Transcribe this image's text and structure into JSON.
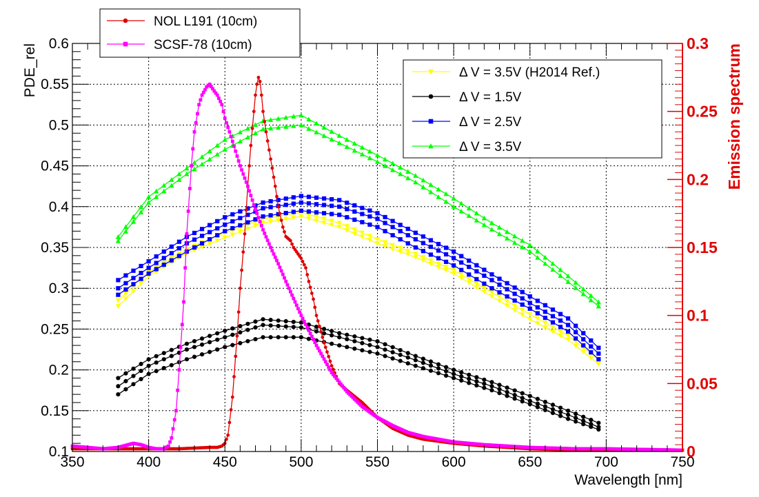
{
  "chart_data": {
    "type": "line",
    "xlabel": "Wavelength [nm]",
    "ylabel": "PDE_rel",
    "y2label": "Emission spectrum",
    "xlim": [
      350,
      750
    ],
    "ylim": [
      0.1,
      0.6
    ],
    "y2lim": [
      0,
      0.3
    ],
    "grid": true,
    "x_ticks": [
      "350",
      "400",
      "450",
      "500",
      "550",
      "600",
      "650",
      "700",
      "750"
    ],
    "y_ticks": [
      "0.1",
      "0.15",
      "0.2",
      "0.25",
      "0.3",
      "0.35",
      "0.4",
      "0.45",
      "0.5",
      "0.55",
      "0.6"
    ],
    "y2_ticks": [
      "0",
      "0.05",
      "0.1",
      "0.15",
      "0.2",
      "0.25",
      "0.3"
    ],
    "legend_top": {
      "placement": "top-left-outside",
      "entries": [
        {
          "label": "NOL L191 (10cm)",
          "color": "#e00000",
          "marker": "circle"
        },
        {
          "label": "SCSF-78 (10cm)",
          "color": "#ff00ff",
          "marker": "square"
        }
      ]
    },
    "legend_right": {
      "placement": "top-right",
      "entries": [
        {
          "label": "Δ V = 3.5V (H2014 Ref.)",
          "color": "#ffff00",
          "marker": "triangle-down"
        },
        {
          "label": "Δ V = 1.5V",
          "color": "#000000",
          "marker": "circle"
        },
        {
          "label": "Δ V = 2.5V",
          "color": "#0000ff",
          "marker": "square"
        },
        {
          "label": "Δ V = 3.5V",
          "color": "#00ff00",
          "marker": "triangle-up"
        }
      ]
    },
    "pde_series": [
      {
        "color": "#ffff00",
        "marker": "triangle-down",
        "x": [
          380,
          400,
          425,
          450,
          475,
          500,
          525,
          550,
          575,
          600,
          625,
          650,
          675,
          695
        ],
        "y": [
          0.278,
          0.315,
          0.343,
          0.362,
          0.38,
          0.388,
          0.375,
          0.355,
          0.338,
          0.318,
          0.29,
          0.262,
          0.237,
          0.207
        ]
      },
      {
        "color": "#ffff00",
        "marker": "triangle-down",
        "x": [
          380,
          400,
          425,
          450,
          475,
          500,
          525,
          550,
          575,
          600,
          625,
          650,
          675,
          695
        ],
        "y": [
          0.285,
          0.32,
          0.348,
          0.368,
          0.385,
          0.393,
          0.38,
          0.36,
          0.342,
          0.322,
          0.295,
          0.268,
          0.242,
          0.213
        ]
      },
      {
        "color": "#000000",
        "marker": "circle",
        "x": [
          380,
          400,
          425,
          450,
          475,
          500,
          525,
          550,
          575,
          600,
          625,
          650,
          675,
          695
        ],
        "y": [
          0.19,
          0.213,
          0.232,
          0.248,
          0.262,
          0.258,
          0.245,
          0.235,
          0.217,
          0.2,
          0.185,
          0.168,
          0.15,
          0.135
        ]
      },
      {
        "color": "#000000",
        "marker": "circle",
        "x": [
          380,
          400,
          425,
          450,
          475,
          500,
          525,
          550,
          575,
          600,
          625,
          650,
          675,
          695
        ],
        "y": [
          0.18,
          0.205,
          0.225,
          0.24,
          0.255,
          0.252,
          0.24,
          0.228,
          0.212,
          0.195,
          0.18,
          0.162,
          0.145,
          0.13
        ]
      },
      {
        "color": "#000000",
        "marker": "circle",
        "x": [
          380,
          400,
          425,
          450,
          475,
          500,
          525,
          550,
          575,
          600,
          625,
          650,
          675,
          695
        ],
        "y": [
          0.17,
          0.195,
          0.213,
          0.228,
          0.24,
          0.24,
          0.23,
          0.22,
          0.205,
          0.19,
          0.175,
          0.158,
          0.14,
          0.127
        ]
      },
      {
        "color": "#0000ff",
        "marker": "square",
        "x": [
          380,
          400,
          425,
          450,
          475,
          500,
          525,
          550,
          575,
          600,
          625,
          650,
          675,
          695
        ],
        "y": [
          0.31,
          0.333,
          0.363,
          0.387,
          0.405,
          0.413,
          0.408,
          0.392,
          0.368,
          0.345,
          0.317,
          0.29,
          0.263,
          0.227
        ]
      },
      {
        "color": "#0000ff",
        "marker": "square",
        "x": [
          380,
          400,
          425,
          450,
          475,
          500,
          525,
          550,
          575,
          600,
          625,
          650,
          675,
          695
        ],
        "y": [
          0.3,
          0.325,
          0.355,
          0.378,
          0.398,
          0.405,
          0.4,
          0.385,
          0.36,
          0.337,
          0.31,
          0.282,
          0.255,
          0.22
        ]
      },
      {
        "color": "#0000ff",
        "marker": "square",
        "x": [
          380,
          400,
          425,
          450,
          475,
          500,
          525,
          550,
          575,
          600,
          625,
          650,
          675,
          695
        ],
        "y": [
          0.292,
          0.318,
          0.345,
          0.37,
          0.388,
          0.395,
          0.39,
          0.375,
          0.35,
          0.328,
          0.3,
          0.275,
          0.247,
          0.213
        ]
      },
      {
        "color": "#00ff00",
        "marker": "triangle-up",
        "x": [
          380,
          400,
          425,
          450,
          475,
          500,
          525,
          550,
          575,
          600,
          625,
          650,
          675,
          695
        ],
        "y": [
          0.363,
          0.412,
          0.447,
          0.482,
          0.505,
          0.512,
          0.487,
          0.463,
          0.438,
          0.41,
          0.38,
          0.353,
          0.315,
          0.283
        ]
      },
      {
        "color": "#00ff00",
        "marker": "triangle-up",
        "x": [
          380,
          400,
          425,
          450,
          475,
          500,
          525,
          550,
          575,
          600,
          625,
          650,
          675,
          695
        ],
        "y": [
          0.358,
          0.405,
          0.44,
          0.47,
          0.495,
          0.5,
          0.478,
          0.455,
          0.43,
          0.4,
          0.372,
          0.345,
          0.308,
          0.278
        ]
      }
    ],
    "emission_series": [
      {
        "name": "NOL L191 (10cm)",
        "color": "#e00000",
        "marker": "circle",
        "x": [
          350,
          360,
          380,
          400,
          420,
          440,
          445,
          448,
          450,
          452,
          455,
          458,
          460,
          463,
          465,
          467,
          469,
          470,
          471,
          472,
          473,
          474,
          475,
          477,
          480,
          483,
          485,
          488,
          490,
          493,
          495,
          500,
          503,
          505,
          508,
          510,
          515,
          520,
          525,
          530,
          540,
          550,
          560,
          570,
          580,
          600,
          620,
          650,
          680,
          700,
          750
        ],
        "y": [
          0.002,
          0.002,
          0.002,
          0.002,
          0.002,
          0.003,
          0.003,
          0.004,
          0.006,
          0.012,
          0.04,
          0.085,
          0.12,
          0.16,
          0.195,
          0.225,
          0.25,
          0.262,
          0.27,
          0.275,
          0.272,
          0.262,
          0.25,
          0.235,
          0.215,
          0.195,
          0.18,
          0.165,
          0.158,
          0.155,
          0.15,
          0.142,
          0.135,
          0.125,
          0.112,
          0.1,
          0.08,
          0.063,
          0.05,
          0.045,
          0.036,
          0.025,
          0.017,
          0.012,
          0.009,
          0.006,
          0.004,
          0.002,
          0.001,
          0.001,
          0.001
        ]
      },
      {
        "name": "SCSF-78 (10cm)",
        "color": "#ff00ff",
        "marker": "square",
        "x": [
          350,
          360,
          370,
          380,
          390,
          395,
          400,
          405,
          410,
          413,
          415,
          418,
          420,
          423,
          425,
          428,
          430,
          433,
          435,
          438,
          440,
          443,
          445,
          448,
          450,
          453,
          455,
          460,
          465,
          470,
          475,
          480,
          485,
          490,
          500,
          510,
          520,
          530,
          540,
          550,
          560,
          570,
          580,
          590,
          600,
          620,
          650,
          680,
          700,
          750
        ],
        "y": [
          0.004,
          0.003,
          0.002,
          0.003,
          0.006,
          0.005,
          0.003,
          0.002,
          0.002,
          0.004,
          0.01,
          0.03,
          0.06,
          0.11,
          0.16,
          0.21,
          0.235,
          0.255,
          0.262,
          0.268,
          0.27,
          0.265,
          0.262,
          0.255,
          0.245,
          0.235,
          0.228,
          0.21,
          0.195,
          0.178,
          0.163,
          0.15,
          0.138,
          0.125,
          0.1,
          0.078,
          0.058,
          0.044,
          0.033,
          0.025,
          0.019,
          0.014,
          0.011,
          0.009,
          0.007,
          0.005,
          0.003,
          0.002,
          0.002,
          0.001
        ]
      }
    ]
  }
}
